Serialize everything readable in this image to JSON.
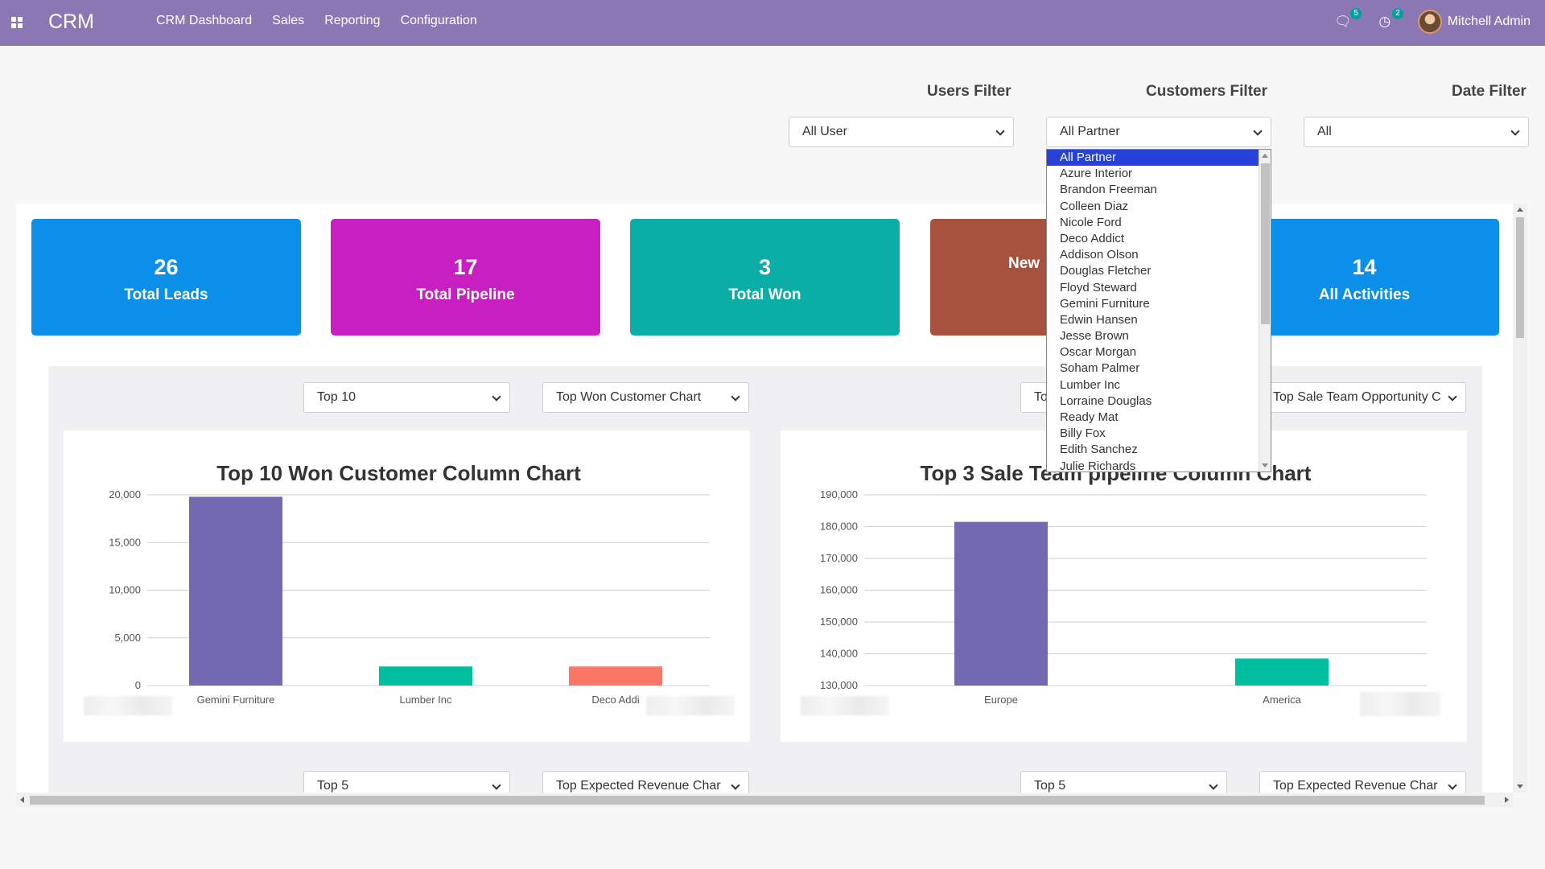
{
  "navbar": {
    "brand": "CRM",
    "menu": [
      "CRM Dashboard",
      "Sales",
      "Reporting",
      "Configuration"
    ],
    "messages_badge": "5",
    "activities_badge": "2",
    "user_name": "Mitchell Admin"
  },
  "filters": {
    "users_label": "Users Filter",
    "users_value": "All User",
    "customers_label": "Customers Filter",
    "customers_value": "All Partner",
    "date_label": "Date Filter",
    "date_value": "All",
    "customer_options": [
      "All Partner",
      "Azure Interior",
      "Brandon Freeman",
      "Colleen Diaz",
      "Nicole Ford",
      "Deco Addict",
      "Addison Olson",
      "Douglas Fletcher",
      "Floyd Steward",
      "Gemini Furniture",
      "Edwin Hansen",
      "Jesse Brown",
      "Oscar Morgan",
      "Soham Palmer",
      "Lumber Inc",
      "Lorraine Douglas",
      "Ready Mat",
      "Billy Fox",
      "Edith Sanchez",
      "Julie Richards"
    ]
  },
  "cards": [
    {
      "value": "26",
      "label": "Total Leads",
      "color": "#0b8fe8"
    },
    {
      "value": "17",
      "label": "Total Pipeline",
      "color": "#c81fc3"
    },
    {
      "value": "3",
      "label": "Total Won",
      "color": "#0aaea6"
    },
    {
      "value": "",
      "label": "New",
      "color": "#a7513f"
    },
    {
      "value": "14",
      "label": "All Activities",
      "color": "#0b8fe8"
    }
  ],
  "chart_controls": {
    "left_top": "Top 10",
    "left_type": "Top Won Customer Chart",
    "right_top": "To",
    "right_type": "Top Sale Team Opportunity C",
    "bottom_left_top": "Top 5",
    "bottom_left_type": "Top Expected Revenue Char",
    "bottom_right_top": "Top 5",
    "bottom_right_type": "Top Expected Revenue Char"
  },
  "chart_data": [
    {
      "type": "bar",
      "title": "Top 10 Won Customer Column Chart",
      "categories": [
        "Gemini Furniture",
        "Lumber Inc",
        "Deco Addi"
      ],
      "values": [
        19800,
        2000,
        2000
      ],
      "colors": [
        "#7269b0",
        "#00bf9f",
        "#fa7766"
      ],
      "ylim": [
        0,
        20000
      ],
      "yticks": [
        "20,000",
        "15,000",
        "10,000",
        "5,000",
        "0"
      ],
      "ytick_values": [
        20000,
        15000,
        10000,
        5000,
        0
      ],
      "grid": true
    },
    {
      "type": "bar",
      "title": "Top 3 Sale Team pipeline Column Chart",
      "categories": [
        "Europe",
        "America"
      ],
      "values": [
        181500,
        138500
      ],
      "colors": [
        "#7269b0",
        "#00bf9f"
      ],
      "ylim": [
        130000,
        190000
      ],
      "yticks": [
        "190,000",
        "180,000",
        "170,000",
        "160,000",
        "150,000",
        "140,000",
        "130,000"
      ],
      "ytick_values": [
        190000,
        180000,
        170000,
        160000,
        150000,
        140000,
        130000
      ],
      "grid": true
    }
  ]
}
